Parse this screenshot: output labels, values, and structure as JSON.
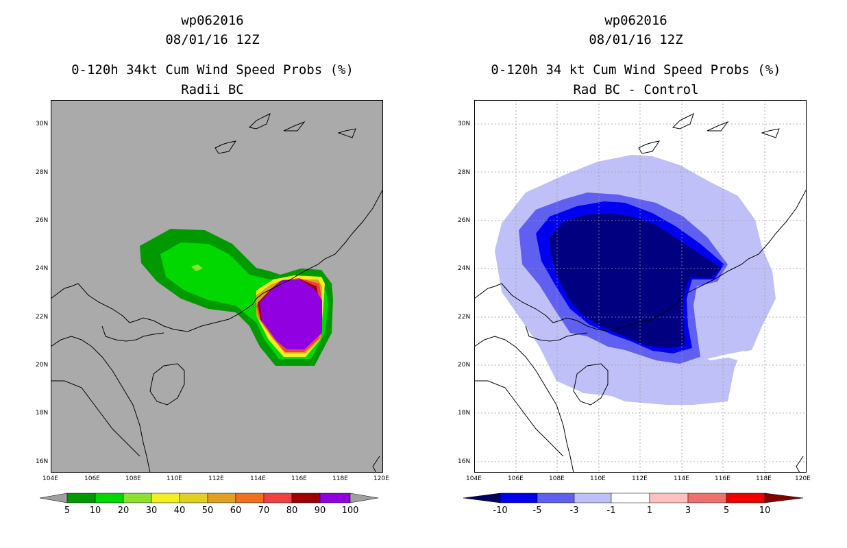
{
  "left_panel": {
    "storm_id": "wp062016",
    "datetime": "08/01/16 12Z",
    "product": "0-120h 34kt Cum Wind Speed Probs (%)",
    "subtitle": "Radii BC",
    "colorbar_labels": [
      "5",
      "10",
      "20",
      "30",
      "40",
      "50",
      "60",
      "70",
      "80",
      "90",
      "100"
    ],
    "colorbar_colors": [
      "#009a00",
      "#00d800",
      "#8ee030",
      "#f0f020",
      "#e0d020",
      "#e0a020",
      "#f07020",
      "#f04040",
      "#a00000",
      "#9000e0"
    ],
    "background_color": "#aaaaaa"
  },
  "right_panel": {
    "storm_id": "wp062016",
    "datetime": "08/01/16 12Z",
    "product": "0-120h 34 kt Cum Wind Speed Probs (%)",
    "subtitle": "Rad BC - Control",
    "colorbar_labels": [
      "-10",
      "-5",
      "-3",
      "-1",
      "1",
      "3",
      "5",
      "10"
    ],
    "colorbar_colors": [
      "#000080",
      "#0000f0",
      "#6060f0",
      "#c0c0f8",
      "#ffffff",
      "#ffc0c0",
      "#f07070",
      "#f00000"
    ],
    "colorbar_end_colors": [
      "#000060",
      "#800000"
    ]
  },
  "axes": {
    "lat_labels": [
      "30N",
      "28N",
      "26N",
      "24N",
      "22N",
      "20N",
      "18N",
      "16N"
    ],
    "lon_labels": [
      "104E",
      "106E",
      "108E",
      "110E",
      "112E",
      "114E",
      "116E",
      "118E",
      "120E"
    ]
  }
}
